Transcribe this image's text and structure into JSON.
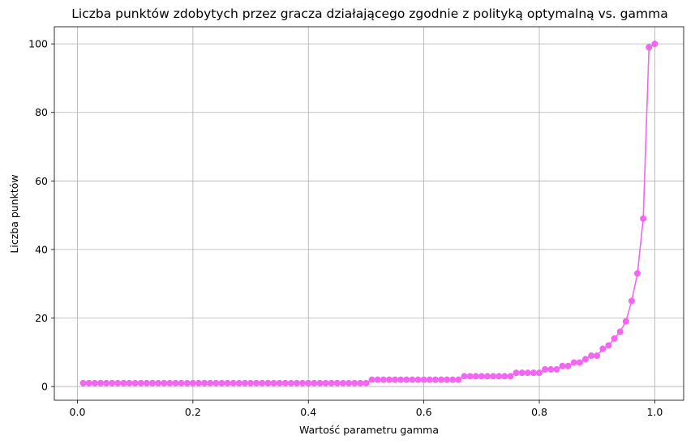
{
  "chart_data": {
    "type": "line",
    "title": "Liczba punktów zdobytych przez gracza działającego zgodnie z polityką optymalną vs. gamma",
    "xlabel": "Wartość parametru gamma",
    "ylabel": "Liczba punktów",
    "xlim": [
      -0.04,
      1.05
    ],
    "ylim": [
      -4,
      105
    ],
    "xticks": [
      "0.0",
      "0.2",
      "0.4",
      "0.6",
      "0.8",
      "1.0"
    ],
    "xtick_values": [
      0,
      0.2,
      0.4,
      0.6,
      0.8,
      1.0
    ],
    "yticks": [
      "0",
      "20",
      "40",
      "60",
      "80",
      "100"
    ],
    "ytick_values": [
      0,
      20,
      40,
      60,
      80,
      100
    ],
    "grid": true,
    "marker": "circle",
    "color": "#f266f2",
    "series": [
      {
        "x": [
          0.01,
          0.02,
          0.03,
          0.04,
          0.05,
          0.06,
          0.07,
          0.08,
          0.09,
          0.1,
          0.11,
          0.12,
          0.13,
          0.14,
          0.15,
          0.16,
          0.17,
          0.18,
          0.19,
          0.2,
          0.21,
          0.22,
          0.23,
          0.24,
          0.25,
          0.26,
          0.27,
          0.28,
          0.29,
          0.3,
          0.31,
          0.32,
          0.33,
          0.34,
          0.35,
          0.36,
          0.37,
          0.38,
          0.39,
          0.4,
          0.41,
          0.42,
          0.43,
          0.44,
          0.45,
          0.46,
          0.47,
          0.48,
          0.49,
          0.5,
          0.51,
          0.52,
          0.53,
          0.54,
          0.55,
          0.56,
          0.57,
          0.58,
          0.59,
          0.6,
          0.61,
          0.62,
          0.63,
          0.64,
          0.65,
          0.66,
          0.67,
          0.68,
          0.69,
          0.7,
          0.71,
          0.72,
          0.73,
          0.74,
          0.75,
          0.76,
          0.77,
          0.78,
          0.79,
          0.8,
          0.81,
          0.82,
          0.83,
          0.84,
          0.85,
          0.86,
          0.87,
          0.88,
          0.89,
          0.9,
          0.91,
          0.92,
          0.93,
          0.94,
          0.95,
          0.96,
          0.97,
          0.98,
          0.99,
          1.0
        ],
        "values": [
          1,
          1,
          1,
          1,
          1,
          1,
          1,
          1,
          1,
          1,
          1,
          1,
          1,
          1,
          1,
          1,
          1,
          1,
          1,
          1,
          1,
          1,
          1,
          1,
          1,
          1,
          1,
          1,
          1,
          1,
          1,
          1,
          1,
          1,
          1,
          1,
          1,
          1,
          1,
          1,
          1,
          1,
          1,
          1,
          1,
          1,
          1,
          1,
          1,
          1,
          2,
          2,
          2,
          2,
          2,
          2,
          2,
          2,
          2,
          2,
          2,
          2,
          2,
          2,
          2,
          2,
          3,
          3,
          3,
          3,
          3,
          3,
          3,
          3,
          3,
          4,
          4,
          4,
          4,
          4,
          5,
          5,
          5,
          6,
          6,
          7,
          7,
          8,
          9,
          9,
          11,
          12,
          14,
          16,
          19,
          25,
          33,
          49,
          99,
          100
        ]
      }
    ]
  }
}
